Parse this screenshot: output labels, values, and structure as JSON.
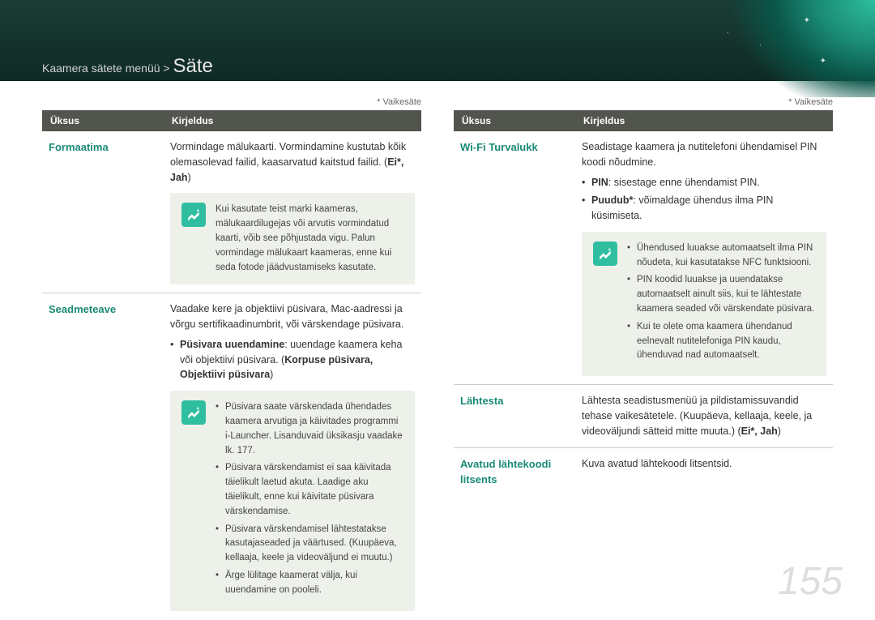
{
  "header": {
    "bg_gradient": [
      "#1a3d36",
      "#0f2a24"
    ],
    "breadcrumb_prefix": "Kaamera sätete menüü >",
    "breadcrumb_main": "Säte"
  },
  "abstract": {
    "gradient_colors": [
      "#2fbfa0",
      "#1a8a75",
      "#0a5548"
    ]
  },
  "default_label": "* Vaikesäte",
  "page_number": "155",
  "page_number_color": "#dddddd",
  "accent_color": "#1a8a75",
  "note_bg": "#edf1ea",
  "note_icon_bg": "#2fbfa0",
  "table_header_bg": "#52554d",
  "cols": {
    "item": "Üksus",
    "desc": "Kirjeldus"
  },
  "left": [
    {
      "k": "Formaatima",
      "desc": {
        "text": "Vormindage mälukaarti. Vormindamine kustutab kõik olemasolevad failid, kaasarvatud kaitstud failid. (",
        "bold": "Ei*, Jah",
        "suffix": ")"
      },
      "note": {
        "type": "plain",
        "text": "Kui kasutate teist marki kaameras, mälukaardilugejas või arvutis vormindatud kaarti, võib see põhjustada vigu. Palun vormindage mälukaart kaameras, enne kui seda fotode jäädvustamiseks kasutate."
      }
    },
    {
      "k": "Seadmeteave",
      "desc": {
        "text": "Vaadake kere ja objektiivi püsivara, Mac-aadressi ja võrgu sertifikaadinumbrit, või värskendage püsivara."
      },
      "bullets": [
        {
          "pre": "",
          "bold": "Püsivara uuendamine",
          "mid": ": uuendage kaamera keha või objektiivi püsivara. (",
          "bold2": "Korpuse püsivara, Objektiivi püsivara",
          "suf": ")"
        }
      ],
      "note": {
        "type": "list",
        "items": [
          "Püsivara saate värskendada ühendades kaamera arvutiga ja käivitades programmi i-Launcher. Lisanduvaid üksikasju vaadake lk. 177.",
          "Püsivara värskendamist ei saa käivitada täielikult laetud akuta. Laadige aku täielikult, enne kui käivitate püsivara värskendamise.",
          "Püsivara värskendamisel lähtestatakse kasutajaseaded ja väärtused. (Kuupäeva, kellaaja, keele ja videoväljund ei muutu.)",
          "Ärge lülitage kaamerat välja, kui uuendamine on pooleli."
        ]
      }
    }
  ],
  "right": [
    {
      "k": "Wi-Fi Turvalukk",
      "desc": {
        "text": "Seadistage kaamera ja nutitelefoni ühendamisel PIN koodi nõudmine."
      },
      "bullets": [
        {
          "bold": "PIN",
          "mid": ": sisestage enne ühendamist PIN."
        },
        {
          "bold": "Puudub*",
          "mid": ": võimaldage ühendus ilma PIN küsimiseta."
        }
      ],
      "note": {
        "type": "list",
        "items": [
          "Ühendused luuakse automaatselt ilma PIN nõudeta, kui kasutatakse NFC funktsiooni.",
          "PIN koodid luuakse ja uuendatakse automaatselt ainult siis, kui te lähtestate kaamera seaded või värskendate püsivara.",
          "Kui te olete oma kaamera ühendanud eelnevalt nutitelefoniga PIN kaudu, ühenduvad nad automaatselt."
        ]
      }
    },
    {
      "k": "Lähtesta",
      "desc": {
        "text": "Lähtesta seadistusmenüü ja pildistamissuvandid tehase vaikesätetele. (Kuupäeva, kellaaja, keele, ja videoväljundi sätteid mitte muuta.) (",
        "bold": "Ei*, Jah",
        "suffix": ")"
      }
    },
    {
      "k": "Avatud lähtekoodi litsents",
      "desc": {
        "text": "Kuva avatud lähtekoodi litsentsid."
      }
    }
  ]
}
